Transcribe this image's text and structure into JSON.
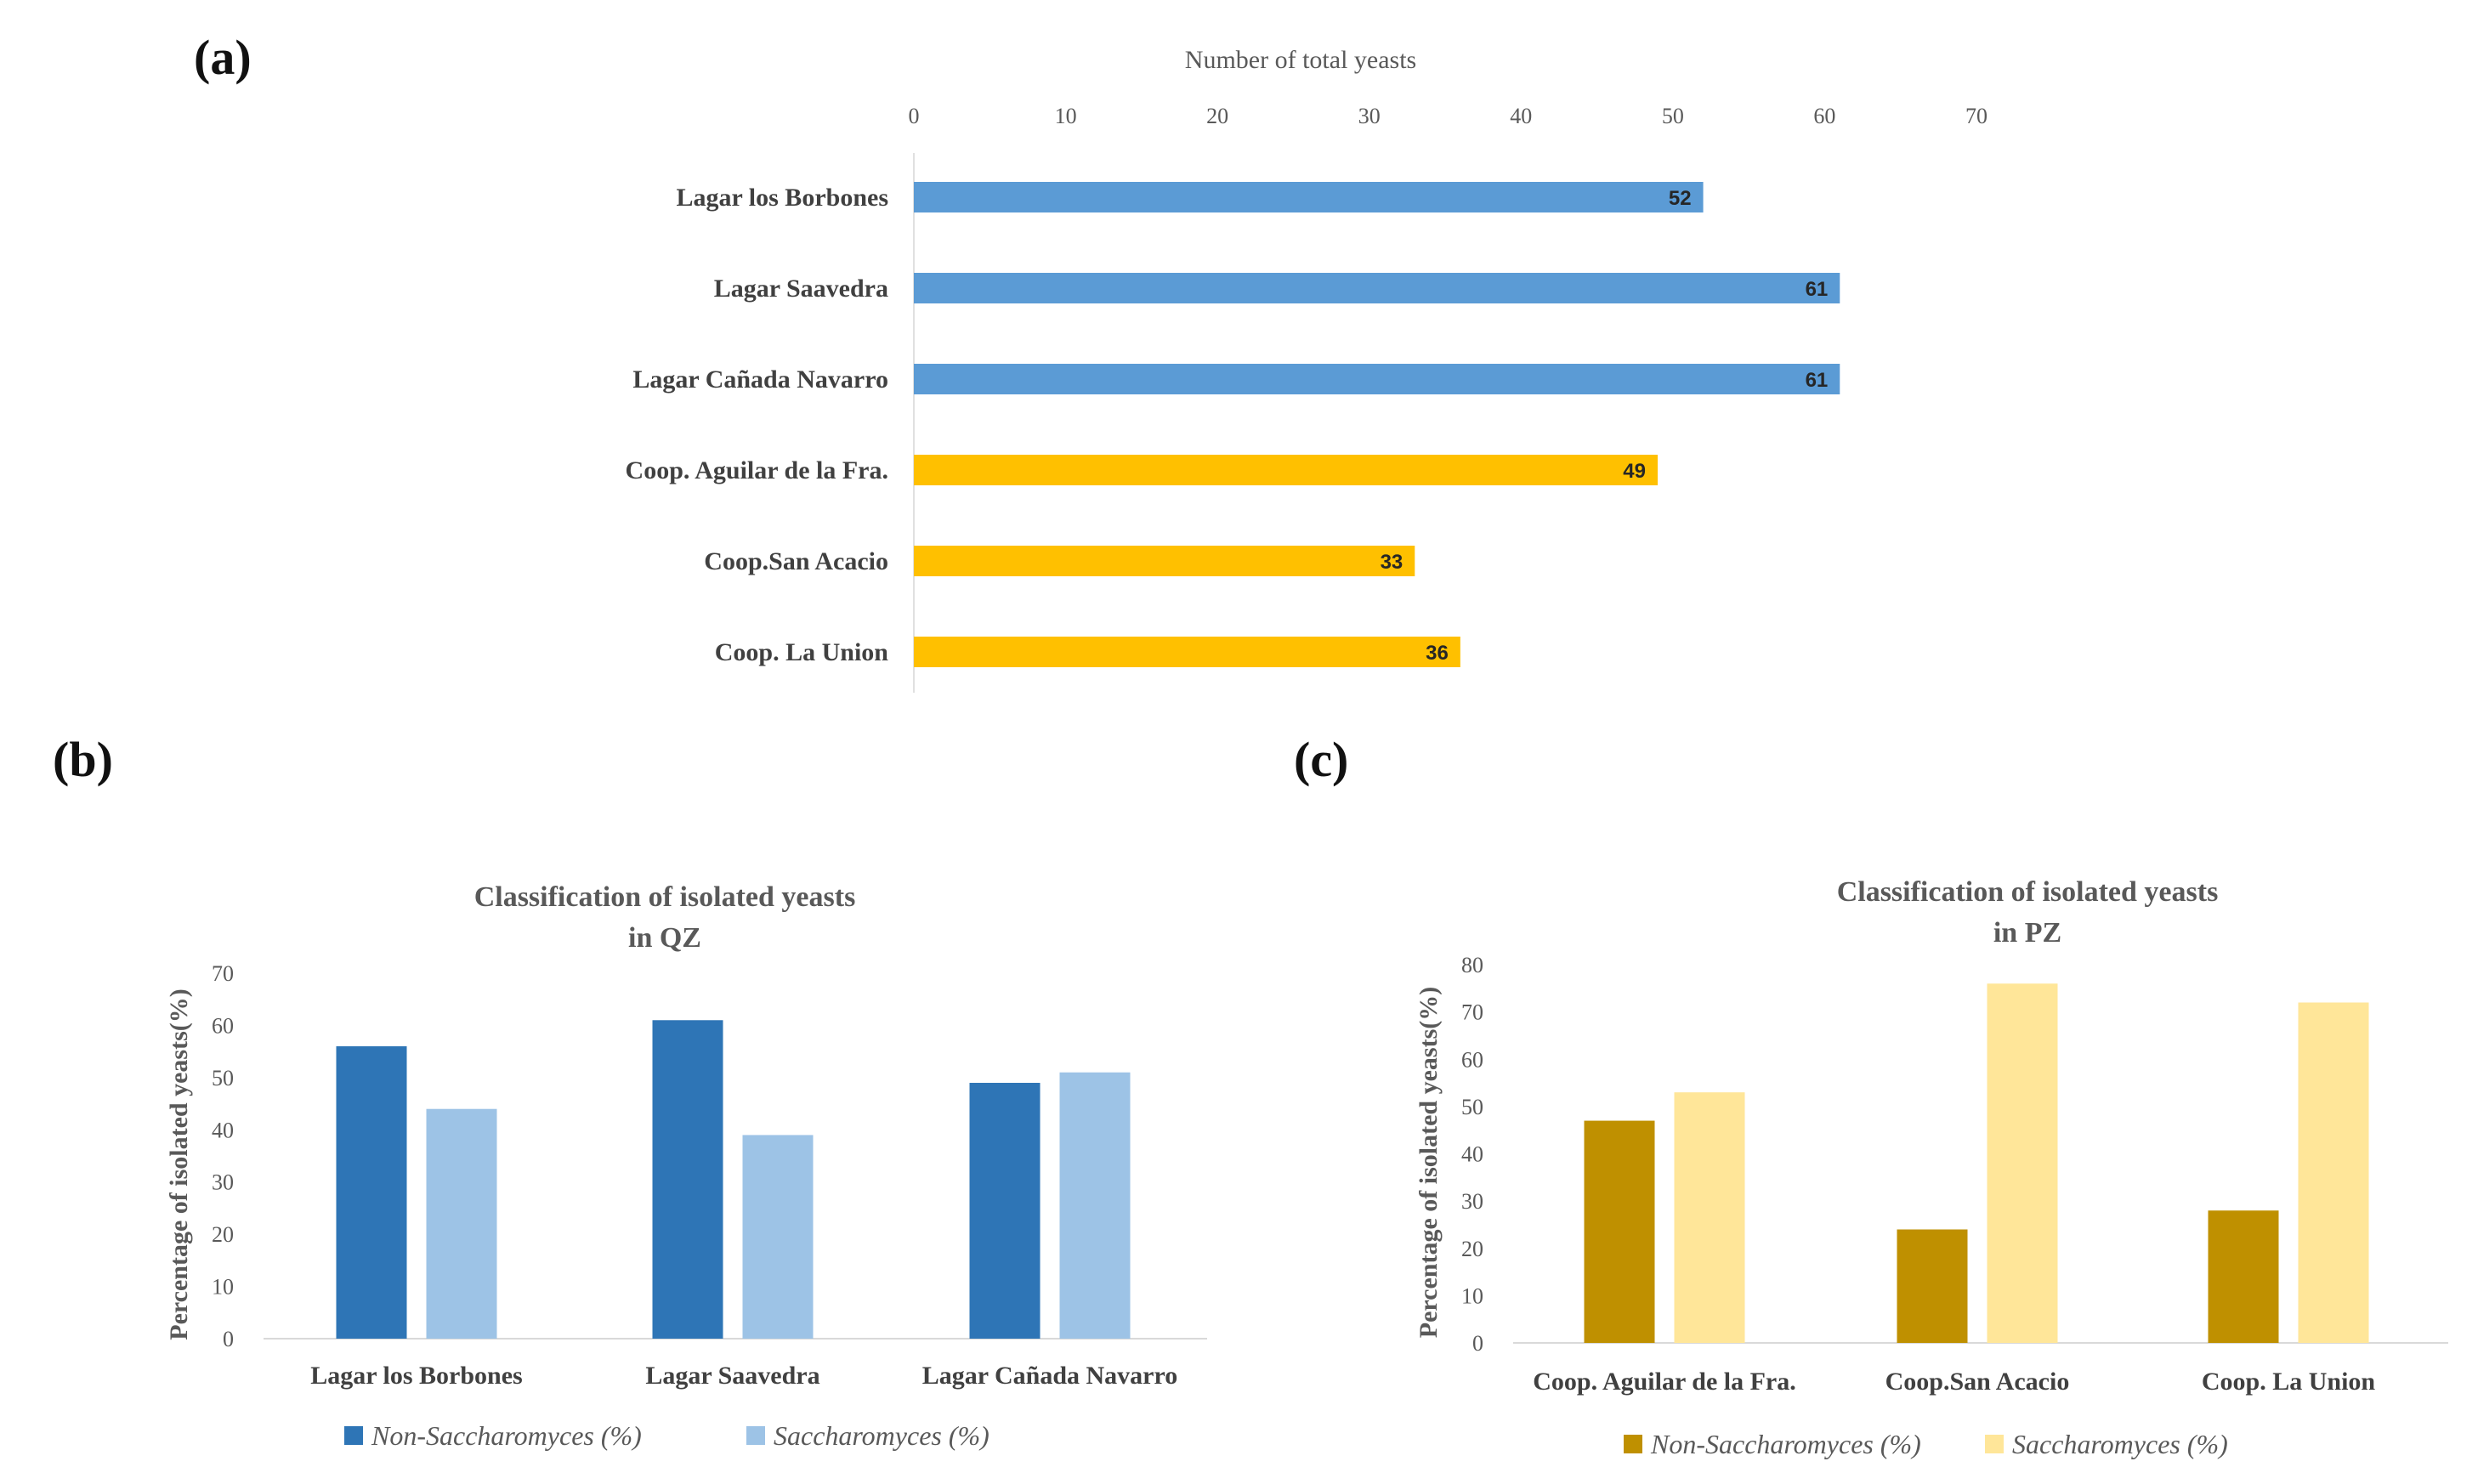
{
  "panels": {
    "a": "(a)",
    "b": "(b)",
    "c": "(c)"
  },
  "chart_data": [
    {
      "id": "a",
      "type": "bar",
      "orientation": "horizontal",
      "title": "Number of total  yeasts",
      "categories": [
        "Lagar los Borbones",
        "Lagar Saavedra",
        "Lagar Cañada Navarro",
        "Coop. Aguilar de la Fra.",
        "Coop.San Acacio",
        "Coop. La Union"
      ],
      "values": [
        52,
        61,
        61,
        49,
        33,
        36
      ],
      "colors": [
        "#5b9bd5",
        "#5b9bd5",
        "#5b9bd5",
        "#ffc000",
        "#ffc000",
        "#ffc000"
      ],
      "xlim": [
        0,
        70
      ],
      "xticks": [
        0,
        10,
        20,
        30,
        40,
        50,
        60,
        70
      ],
      "axis_position": "top",
      "data_labels": true
    },
    {
      "id": "b",
      "type": "bar",
      "title": [
        "Classification of isolated yeasts",
        "in QZ"
      ],
      "ylabel": "Percentage of isolated yeasts(%)",
      "categories": [
        "Lagar los Borbones",
        "Lagar Saavedra",
        "Lagar Cañada Navarro"
      ],
      "series": [
        {
          "name": "Non-Saccharomyces (%)",
          "values": [
            56,
            61,
            49
          ],
          "color": "#2e75b6"
        },
        {
          "name": "Saccharomyces (%)",
          "values": [
            44,
            39,
            51
          ],
          "color": "#9dc3e6"
        }
      ],
      "ylim": [
        0,
        70
      ],
      "yticks": [
        0,
        10,
        20,
        30,
        40,
        50,
        60,
        70
      ],
      "legend": "bottom"
    },
    {
      "id": "c",
      "type": "bar",
      "title": [
        "Classification of isolated yeasts",
        "in PZ"
      ],
      "ylabel": "Percentage of isolated yeasts(%)",
      "categories": [
        "Coop. Aguilar de la Fra.",
        "Coop.San Acacio",
        "Coop. La Union"
      ],
      "series": [
        {
          "name": "Non-Saccharomyces (%)",
          "values": [
            47,
            24,
            28
          ],
          "color": "#bf9000"
        },
        {
          "name": "Saccharomyces (%)",
          "values": [
            53,
            76,
            72
          ],
          "color": "#ffe699"
        }
      ],
      "ylim": [
        0,
        80
      ],
      "yticks": [
        0,
        10,
        20,
        30,
        40,
        50,
        60,
        70,
        80
      ],
      "legend": "bottom"
    }
  ]
}
